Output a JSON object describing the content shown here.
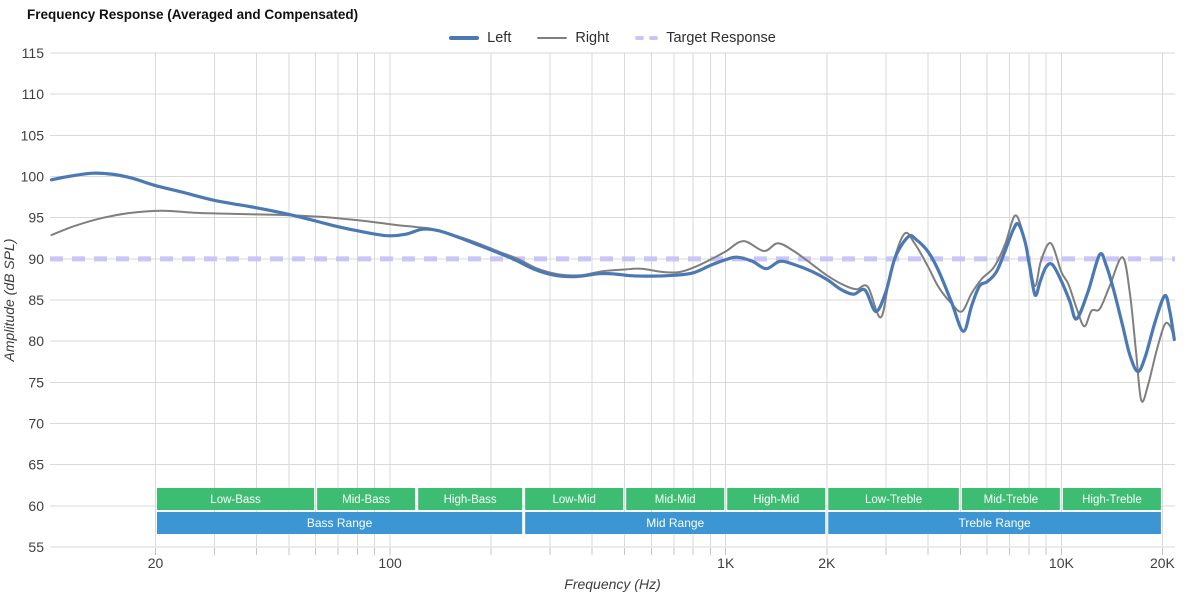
{
  "title": "Frequency Response (Averaged and Compensated)",
  "legend": {
    "items": [
      {
        "label": "Left",
        "color": "#4a79b4",
        "style": "solid-thick"
      },
      {
        "label": "Right",
        "color": "#7f7f7f",
        "style": "solid"
      },
      {
        "label": "Target Response",
        "color": "#c9c5f8",
        "style": "dashed"
      }
    ]
  },
  "chart_data": {
    "type": "line",
    "title": "Frequency Response (Averaged and Compensated)",
    "xlabel": "Frequency (Hz)",
    "ylabel": "Amplitude (dB SPL)",
    "x_scale": "log",
    "xlim": [
      9.7,
      21800
    ],
    "ylim": [
      55,
      115
    ],
    "grid": true,
    "grid_color": "#d9d9d9",
    "tick_color": "#404040",
    "legend_position": "top",
    "y_ticks": [
      115,
      110,
      105,
      100,
      95,
      90,
      85,
      80,
      75,
      70,
      65,
      60,
      55
    ],
    "x_ticks": [
      {
        "value": 20,
        "label": "20"
      },
      {
        "value": 100,
        "label": "100"
      },
      {
        "value": 1000,
        "label": "1K"
      },
      {
        "value": 2000,
        "label": "2K"
      },
      {
        "value": 10000,
        "label": "10K"
      },
      {
        "value": 20000,
        "label": "20K"
      }
    ],
    "x_gridlines": [
      20,
      30,
      40,
      50,
      60,
      70,
      80,
      90,
      100,
      200,
      300,
      400,
      500,
      600,
      700,
      800,
      900,
      1000,
      2000,
      3000,
      4000,
      5000,
      6000,
      7000,
      8000,
      9000,
      10000,
      20000
    ],
    "series": [
      {
        "name": "Right",
        "color": "#7f7f7f",
        "width": 2,
        "points": [
          [
            9.8,
            92.9
          ],
          [
            11.5,
            94.0
          ],
          [
            14,
            95.0
          ],
          [
            17,
            95.6
          ],
          [
            21,
            95.85
          ],
          [
            26,
            95.6
          ],
          [
            32,
            95.5
          ],
          [
            40,
            95.4
          ],
          [
            50,
            95.3
          ],
          [
            62,
            95.1
          ],
          [
            75,
            94.8
          ],
          [
            90,
            94.45
          ],
          [
            105,
            94.1
          ],
          [
            120,
            93.85
          ],
          [
            135,
            93.6
          ],
          [
            160,
            92.7
          ],
          [
            185,
            91.8
          ],
          [
            210,
            90.9
          ],
          [
            240,
            90.0
          ],
          [
            275,
            88.8
          ],
          [
            320,
            88.1
          ],
          [
            370,
            88.0
          ],
          [
            430,
            88.5
          ],
          [
            500,
            88.7
          ],
          [
            560,
            88.8
          ],
          [
            650,
            88.4
          ],
          [
            730,
            88.4
          ],
          [
            820,
            89.1
          ],
          [
            920,
            90.1
          ],
          [
            1000,
            90.9
          ],
          [
            1130,
            92.15
          ],
          [
            1300,
            90.95
          ],
          [
            1430,
            91.9
          ],
          [
            1600,
            90.9
          ],
          [
            1800,
            89.4
          ],
          [
            2000,
            88.0
          ],
          [
            2250,
            86.8
          ],
          [
            2450,
            86.3
          ],
          [
            2650,
            86.6
          ],
          [
            2900,
            82.9
          ],
          [
            3100,
            88.5
          ],
          [
            3400,
            93.0
          ],
          [
            3650,
            91.9
          ],
          [
            4000,
            89.1
          ],
          [
            4300,
            86.6
          ],
          [
            4700,
            84.6
          ],
          [
            5050,
            83.6
          ],
          [
            5400,
            85.8
          ],
          [
            5800,
            87.6
          ],
          [
            6300,
            89.0
          ],
          [
            6800,
            91.8
          ],
          [
            7250,
            95.2
          ],
          [
            7600,
            93.8
          ],
          [
            8000,
            89.8
          ],
          [
            8350,
            86.7
          ],
          [
            8700,
            89.8
          ],
          [
            9300,
            91.9
          ],
          [
            10000,
            88.4
          ],
          [
            10500,
            86.9
          ],
          [
            11100,
            84.0
          ],
          [
            11700,
            81.8
          ],
          [
            12300,
            83.7
          ],
          [
            13000,
            83.9
          ],
          [
            13900,
            86.6
          ],
          [
            15200,
            90.2
          ],
          [
            16000,
            85.8
          ],
          [
            16700,
            78.5
          ],
          [
            17300,
            72.8
          ],
          [
            18100,
            74.6
          ],
          [
            19200,
            78.8
          ],
          [
            20300,
            82.0
          ],
          [
            21100,
            81.8
          ],
          [
            21700,
            80.3
          ]
        ]
      },
      {
        "name": "Left",
        "color": "#4a79b4",
        "width": 3.2,
        "points": [
          [
            9.8,
            99.6
          ],
          [
            11,
            100.0
          ],
          [
            13,
            100.4
          ],
          [
            15,
            100.25
          ],
          [
            17,
            99.8
          ],
          [
            20,
            98.9
          ],
          [
            24,
            98.1
          ],
          [
            30,
            97.1
          ],
          [
            40,
            96.2
          ],
          [
            50,
            95.4
          ],
          [
            60,
            94.6
          ],
          [
            70,
            93.9
          ],
          [
            80,
            93.4
          ],
          [
            90,
            93.0
          ],
          [
            100,
            92.8
          ],
          [
            112,
            93.0
          ],
          [
            125,
            93.6
          ],
          [
            140,
            93.4
          ],
          [
            160,
            92.6
          ],
          [
            180,
            91.8
          ],
          [
            205,
            90.9
          ],
          [
            235,
            89.9
          ],
          [
            270,
            88.7
          ],
          [
            310,
            88.0
          ],
          [
            360,
            87.85
          ],
          [
            420,
            88.2
          ],
          [
            470,
            88.15
          ],
          [
            520,
            87.95
          ],
          [
            600,
            87.9
          ],
          [
            700,
            88.0
          ],
          [
            800,
            88.3
          ],
          [
            900,
            89.2
          ],
          [
            1000,
            89.9
          ],
          [
            1080,
            90.2
          ],
          [
            1200,
            89.7
          ],
          [
            1320,
            88.8
          ],
          [
            1450,
            89.7
          ],
          [
            1600,
            89.3
          ],
          [
            1800,
            88.5
          ],
          [
            2000,
            87.5
          ],
          [
            2200,
            86.3
          ],
          [
            2400,
            85.7
          ],
          [
            2600,
            86.2
          ],
          [
            2800,
            83.6
          ],
          [
            3000,
            86.0
          ],
          [
            3200,
            90.2
          ],
          [
            3500,
            92.7
          ],
          [
            3700,
            92.3
          ],
          [
            4000,
            90.9
          ],
          [
            4300,
            88.6
          ],
          [
            4700,
            84.8
          ],
          [
            5100,
            81.2
          ],
          [
            5400,
            84.3
          ],
          [
            5700,
            86.7
          ],
          [
            6000,
            87.2
          ],
          [
            6400,
            88.4
          ],
          [
            6800,
            91.0
          ],
          [
            7200,
            93.6
          ],
          [
            7450,
            94.2
          ],
          [
            7800,
            92.0
          ],
          [
            8050,
            89.0
          ],
          [
            8350,
            85.6
          ],
          [
            8650,
            87.3
          ],
          [
            9000,
            89.0
          ],
          [
            9400,
            89.3
          ],
          [
            10000,
            87.3
          ],
          [
            10600,
            84.8
          ],
          [
            11100,
            82.7
          ],
          [
            12000,
            86.0
          ],
          [
            13000,
            90.5
          ],
          [
            13600,
            89.2
          ],
          [
            14300,
            86.3
          ],
          [
            15200,
            82.0
          ],
          [
            16000,
            78.3
          ],
          [
            16900,
            76.3
          ],
          [
            17800,
            78.2
          ],
          [
            19000,
            82.3
          ],
          [
            20300,
            85.5
          ],
          [
            21000,
            83.8
          ],
          [
            21700,
            80.2
          ]
        ]
      },
      {
        "name": "Target Response",
        "color": "#c9c5f8",
        "width": 5,
        "dash": [
          13,
          9
        ],
        "constant_y": 90
      }
    ],
    "bands": {
      "green_color": "#3cbd72",
      "blue_color": "#3b96d3",
      "sub_bands": [
        {
          "label": "Low-Bass",
          "from": 20,
          "to": 60
        },
        {
          "label": "Mid-Bass",
          "from": 60,
          "to": 120
        },
        {
          "label": "High-Bass",
          "from": 120,
          "to": 250
        },
        {
          "label": "Low-Mid",
          "from": 250,
          "to": 500
        },
        {
          "label": "Mid-Mid",
          "from": 500,
          "to": 1000
        },
        {
          "label": "High-Mid",
          "from": 1000,
          "to": 2000
        },
        {
          "label": "Low-Treble",
          "from": 2000,
          "to": 5000
        },
        {
          "label": "Mid-Treble",
          "from": 5000,
          "to": 10000
        },
        {
          "label": "High-Treble",
          "from": 10000,
          "to": 20000
        }
      ],
      "ranges": [
        {
          "label": "Bass Range",
          "from": 20,
          "to": 250
        },
        {
          "label": "Mid Range",
          "from": 250,
          "to": 2000
        },
        {
          "label": "Treble Range",
          "from": 2000,
          "to": 20000
        }
      ]
    }
  }
}
